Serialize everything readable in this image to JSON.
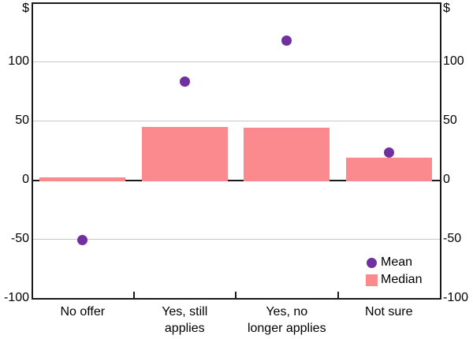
{
  "chart_data": {
    "type": "bar",
    "title": "",
    "categories": [
      "No offer",
      "Yes, still\napplies",
      "Yes, no\nlonger applies",
      "Not sure"
    ],
    "series": [
      {
        "name": "Mean",
        "type": "scatter",
        "values": [
          -51,
          83,
          118,
          23
        ],
        "color": "#7030A0"
      },
      {
        "name": "Median",
        "type": "bar",
        "values": [
          2,
          45,
          44,
          19
        ],
        "color": "#FB8A8E"
      }
    ],
    "ylim": [
      -100,
      150
    ],
    "yticks": [
      -100,
      -50,
      0,
      50,
      100
    ],
    "y_axis_unit": "$",
    "grid": true,
    "zero_line": true,
    "legend_position": "bottom-right"
  },
  "colors": {
    "bar": "#FB8A8E",
    "marker": "#7030A0",
    "gridline": "#c9c9c9",
    "axis": "#1a1a1a",
    "text": "#000000",
    "background": "#ffffff"
  }
}
